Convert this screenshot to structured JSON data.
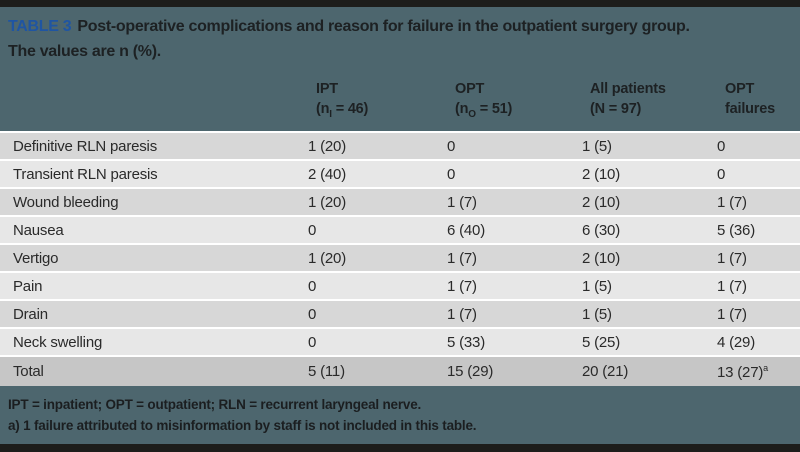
{
  "caption": {
    "tag": "TABLE 3",
    "line1": "Post-operative complications and reason for failure in the outpatient surgery group.",
    "line2": "The values are n (%)."
  },
  "columns": [
    {
      "line1": "IPT",
      "l2pre": "(n",
      "l2sub": "I",
      "l2post": " = 46)"
    },
    {
      "line1": "OPT",
      "l2pre": "(n",
      "l2sub": "O",
      "l2post": " = 51)"
    },
    {
      "line1": "All patients",
      "l2pre": "(N = 97)",
      "l2sub": "",
      "l2post": ""
    },
    {
      "line1": "OPT",
      "l2pre": "failures",
      "l2sub": "",
      "l2post": ""
    }
  ],
  "rows": [
    {
      "label": "Definitive RLN paresis",
      "values": [
        "1 (20)",
        "0",
        "1 (5)",
        "0"
      ],
      "sup": ""
    },
    {
      "label": "Transient RLN paresis",
      "values": [
        "2 (40)",
        "0",
        "2 (10)",
        "0"
      ],
      "sup": ""
    },
    {
      "label": "Wound bleeding",
      "values": [
        "1 (20)",
        "1 (7)",
        "2 (10)",
        "1 (7)"
      ],
      "sup": ""
    },
    {
      "label": "Nausea",
      "values": [
        "0",
        "6 (40)",
        "6 (30)",
        "5 (36)"
      ],
      "sup": ""
    },
    {
      "label": "Vertigo",
      "values": [
        "1 (20)",
        "1 (7)",
        "2 (10)",
        "1 (7)"
      ],
      "sup": ""
    },
    {
      "label": "Pain",
      "values": [
        "0",
        "1 (7)",
        "1 (5)",
        "1 (7)"
      ],
      "sup": ""
    },
    {
      "label": "Drain",
      "values": [
        "0",
        "1 (7)",
        "1 (5)",
        "1 (7)"
      ],
      "sup": ""
    },
    {
      "label": "Neck swelling",
      "values": [
        "0",
        "5 (33)",
        "5 (25)",
        "4 (29)"
      ],
      "sup": ""
    },
    {
      "label": "Total",
      "values": [
        "5 (11)",
        "15 (29)",
        "20 (21)",
        "13 (27)"
      ],
      "sup": "a"
    }
  ],
  "footnotes": {
    "abbreviations": "IPT = inpatient; OPT = outpatient; RLN = recurrent laryngeal nerve.",
    "note_a": "a) 1 failure attributed to misinformation by staff is not included in this table."
  },
  "colors": {
    "band_teal": "#4d666e",
    "bar_black": "#1d1d1b",
    "caption_tag_blue": "#1f55a3",
    "row_dark": "#d7d7d7",
    "row_light": "#e7e7e7",
    "row_total": "#c6c6c6",
    "text_dark": "#1d2123"
  },
  "chart_data": {
    "type": "table",
    "title": "TABLE 3 Post-operative complications and reason for failure in the outpatient surgery group. The values are n (%).",
    "columns": [
      "",
      "IPT (nI = 46)",
      "OPT (nO = 51)",
      "All patients (N = 97)",
      "OPT failures"
    ],
    "rows": [
      [
        "Definitive RLN paresis",
        "1 (20)",
        "0",
        "1 (5)",
        "0"
      ],
      [
        "Transient RLN paresis",
        "2 (40)",
        "0",
        "2 (10)",
        "0"
      ],
      [
        "Wound bleeding",
        "1 (20)",
        "1 (7)",
        "2 (10)",
        "1 (7)"
      ],
      [
        "Nausea",
        "0",
        "6 (40)",
        "6 (30)",
        "5 (36)"
      ],
      [
        "Vertigo",
        "1 (20)",
        "1 (7)",
        "2 (10)",
        "1 (7)"
      ],
      [
        "Pain",
        "0",
        "1 (7)",
        "1 (5)",
        "1 (7)"
      ],
      [
        "Drain",
        "0",
        "1 (7)",
        "1 (5)",
        "1 (7)"
      ],
      [
        "Neck swelling",
        "0",
        "5 (33)",
        "5 (25)",
        "4 (29)"
      ],
      [
        "Total",
        "5 (11)",
        "15 (29)",
        "20 (21)",
        "13 (27)a"
      ]
    ]
  }
}
